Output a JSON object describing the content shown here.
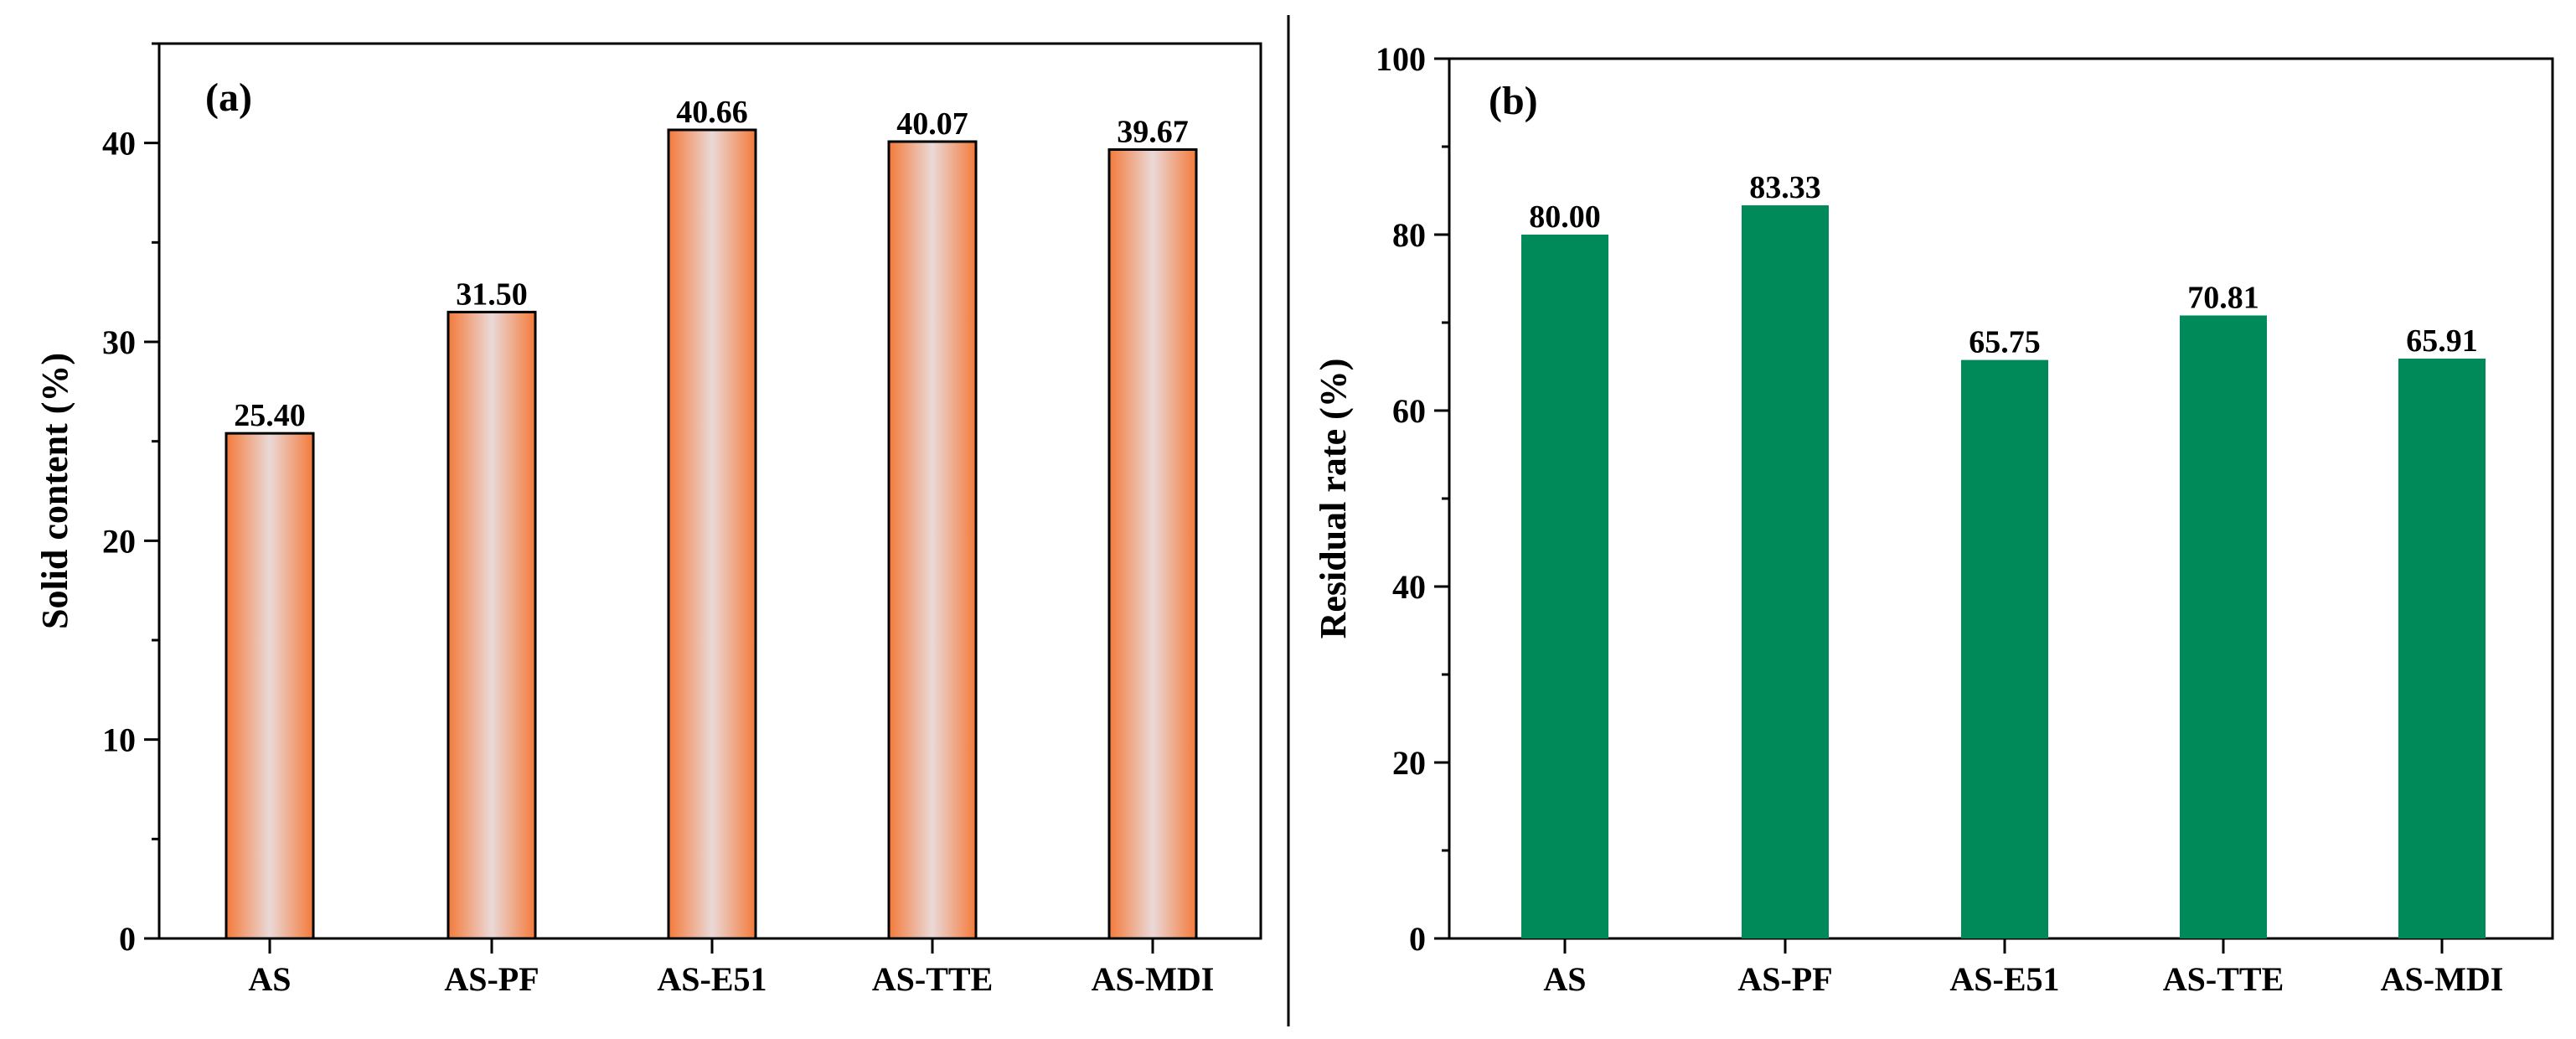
{
  "colors": {
    "orange": "#f47a3a",
    "orange_light": "#ead9d8",
    "green": "#008a5a",
    "axis": "#000000"
  },
  "chart_data": [
    {
      "type": "bar",
      "panel_label": "(a)",
      "title": "",
      "xlabel": "",
      "ylabel": "Solid content (%)",
      "categories": [
        "AS",
        "AS-PF",
        "AS-E51",
        "AS-TTE",
        "AS-MDI"
      ],
      "values": [
        25.4,
        31.5,
        40.66,
        40.07,
        39.67
      ],
      "value_labels": [
        "25.40",
        "31.50",
        "40.66",
        "40.07",
        "39.67"
      ],
      "ylim": [
        0,
        45
      ],
      "yticks": [
        0,
        10,
        20,
        30,
        40
      ],
      "yminor_step": 5,
      "grid": false,
      "fill": "gradient-orange"
    },
    {
      "type": "bar",
      "panel_label": "(b)",
      "title": "",
      "xlabel": "",
      "ylabel": "Residual rate (%)",
      "categories": [
        "AS",
        "AS-PF",
        "AS-E51",
        "AS-TTE",
        "AS-MDI"
      ],
      "values": [
        80.0,
        83.33,
        65.75,
        70.81,
        65.91
      ],
      "value_labels": [
        "80.00",
        "83.33",
        "65.75",
        "70.81",
        "65.91"
      ],
      "ylim": [
        0,
        100
      ],
      "yticks": [
        0,
        20,
        40,
        60,
        80,
        100
      ],
      "yminor_step": 10,
      "grid": false,
      "fill": "solid-green"
    }
  ]
}
